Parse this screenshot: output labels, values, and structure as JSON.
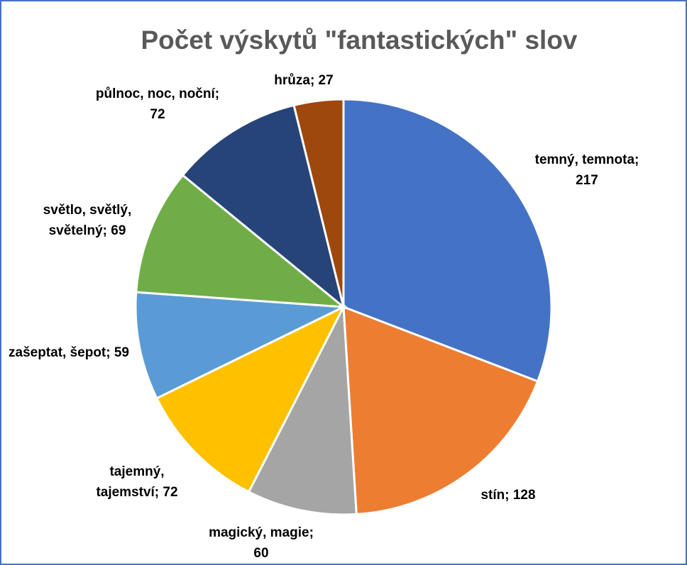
{
  "chart_data": {
    "type": "pie",
    "title": "Počet výskytů \"fantastických\" slov",
    "slices": [
      {
        "label": "temný, temnota",
        "value": 217,
        "color": "#4472C4",
        "label_lines": [
          "temný, temnota;",
          "217"
        ]
      },
      {
        "label": "stín",
        "value": 128,
        "color": "#ED7D31",
        "label_lines": [
          "stín; 128"
        ]
      },
      {
        "label": "magický, magie",
        "value": 60,
        "color": "#A5A5A5",
        "label_lines": [
          "magický, magie;",
          "60"
        ]
      },
      {
        "label": "tajemný, tajemství",
        "value": 72,
        "color": "#FFC000",
        "label_lines": [
          "tajemný,",
          "tajemství; 72"
        ]
      },
      {
        "label": "zašeptat, šepot",
        "value": 59,
        "color": "#5B9BD5",
        "label_lines": [
          "zašeptat, šepot; 59"
        ]
      },
      {
        "label": "světlo, světlý, světelný",
        "value": 69,
        "color": "#70AD47",
        "label_lines": [
          "světlo, světlý,",
          "světelný; 69"
        ]
      },
      {
        "label": "půlnoc, noc, noční",
        "value": 72,
        "color": "#264478",
        "label_lines": [
          "půlnoc, noc, noční;",
          "72"
        ]
      },
      {
        "label": "hrůza",
        "value": 27,
        "color": "#9E480E",
        "label_lines": [
          "hrůza; 27"
        ]
      }
    ],
    "legend": "none"
  }
}
